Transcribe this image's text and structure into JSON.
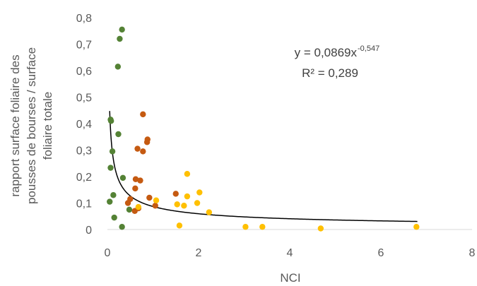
{
  "chart_data": {
    "type": "scatter",
    "xlabel": "NCI",
    "ylabel_lines": [
      "rapport surface foliaire des",
      "pousses de bourses / surface",
      "foliaire totale"
    ],
    "xlim": [
      0,
      8
    ],
    "ylim": [
      0,
      0.8
    ],
    "x_ticks": [
      0,
      2,
      4,
      6,
      8
    ],
    "x_tick_labels": [
      "0",
      "2",
      "4",
      "6",
      "8"
    ],
    "y_ticks": [
      0,
      0.1,
      0.2,
      0.3,
      0.4,
      0.5,
      0.6,
      0.7,
      0.8
    ],
    "y_tick_labels": [
      "0",
      "0,1",
      "0,2",
      "0,3",
      "0,4",
      "0,5",
      "0,6",
      "0,7",
      "0,8"
    ],
    "grid": false,
    "legend": "none",
    "annotation": {
      "equation_prefix": "y = 0,0869x",
      "equation_exponent": "-0,547",
      "r_squared": "R² = 0,289"
    },
    "trendline": {
      "type": "power",
      "a": 0.0869,
      "b": -0.547,
      "x_range": [
        0.05,
        6.8
      ],
      "color": "#000000"
    },
    "series": [
      {
        "color": "#548235",
        "points": [
          {
            "x": 0.32,
            "y": 0.755
          },
          {
            "x": 0.27,
            "y": 0.72
          },
          {
            "x": 0.23,
            "y": 0.615
          },
          {
            "x": 0.07,
            "y": 0.415
          },
          {
            "x": 0.08,
            "y": 0.41
          },
          {
            "x": 0.24,
            "y": 0.36
          },
          {
            "x": 0.11,
            "y": 0.295
          },
          {
            "x": 0.07,
            "y": 0.233
          },
          {
            "x": 0.34,
            "y": 0.195
          },
          {
            "x": 0.13,
            "y": 0.13
          },
          {
            "x": 0.05,
            "y": 0.105
          },
          {
            "x": 0.48,
            "y": 0.075
          },
          {
            "x": 0.15,
            "y": 0.045
          },
          {
            "x": 0.32,
            "y": 0.01
          }
        ]
      },
      {
        "color": "#C55A11",
        "points": [
          {
            "x": 0.78,
            "y": 0.435
          },
          {
            "x": 0.88,
            "y": 0.34
          },
          {
            "x": 0.87,
            "y": 0.33
          },
          {
            "x": 0.66,
            "y": 0.305
          },
          {
            "x": 0.78,
            "y": 0.295
          },
          {
            "x": 0.62,
            "y": 0.19
          },
          {
            "x": 0.72,
            "y": 0.185
          },
          {
            "x": 0.61,
            "y": 0.155
          },
          {
            "x": 1.5,
            "y": 0.135
          },
          {
            "x": 0.92,
            "y": 0.12
          },
          {
            "x": 0.5,
            "y": 0.115
          },
          {
            "x": 0.45,
            "y": 0.1
          },
          {
            "x": 1.05,
            "y": 0.09
          },
          {
            "x": 0.68,
            "y": 0.08
          },
          {
            "x": 0.6,
            "y": 0.07
          }
        ]
      },
      {
        "color": "#FFC000",
        "points": [
          {
            "x": 1.75,
            "y": 0.21
          },
          {
            "x": 2.02,
            "y": 0.14
          },
          {
            "x": 1.75,
            "y": 0.125
          },
          {
            "x": 1.07,
            "y": 0.11
          },
          {
            "x": 2.23,
            "y": 0.065
          },
          {
            "x": 1.97,
            "y": 0.1
          },
          {
            "x": 1.53,
            "y": 0.095
          },
          {
            "x": 1.68,
            "y": 0.09
          },
          {
            "x": 0.68,
            "y": 0.085
          },
          {
            "x": 1.58,
            "y": 0.015
          },
          {
            "x": 3.03,
            "y": 0.01
          },
          {
            "x": 3.4,
            "y": 0.01
          },
          {
            "x": 4.68,
            "y": 0.004
          },
          {
            "x": 6.78,
            "y": 0.01
          }
        ]
      }
    ]
  }
}
